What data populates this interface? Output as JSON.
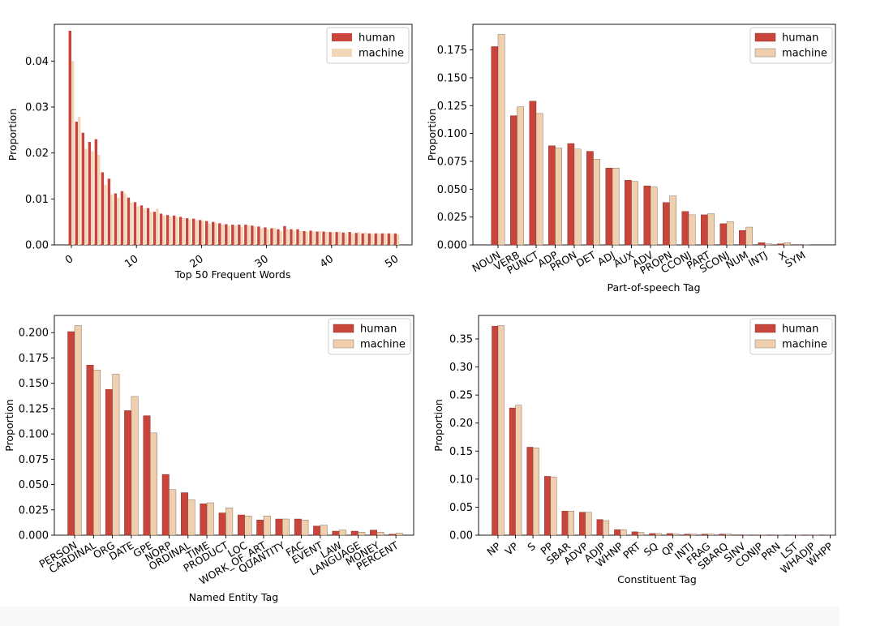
{
  "legend": {
    "human": "human",
    "machine": "machine"
  },
  "colors": {
    "human": "#c9443a",
    "machine": "#efcfae",
    "machine_light": "#f3d5b8"
  },
  "chart_data": [
    {
      "id": "words",
      "type": "bar",
      "title": "",
      "xlabel": "Top 50 Frequent Words",
      "ylabel": "Proportion",
      "xlim": [
        -2,
        51
      ],
      "ylim": [
        0,
        0.048
      ],
      "xticks": [
        0,
        10,
        20,
        30,
        40,
        50
      ],
      "xtick_labels": [
        "0",
        "10",
        "20",
        "30",
        "40",
        "50"
      ],
      "yticks": [
        0,
        0.01,
        0.02,
        0.03,
        0.04
      ],
      "ytick_labels": [
        "0.00",
        "0.01",
        "0.02",
        "0.03",
        "0.04"
      ],
      "legend_position": "top-right",
      "series": [
        {
          "name": "human",
          "x": [
            0,
            1,
            2,
            3,
            4,
            5,
            6,
            7,
            8,
            9,
            10,
            11,
            12,
            13,
            14,
            15,
            16,
            17,
            18,
            19,
            20,
            21,
            22,
            23,
            24,
            25,
            26,
            27,
            28,
            29,
            30,
            31,
            32,
            33,
            34,
            35,
            36,
            37,
            38,
            39,
            40,
            41,
            42,
            43,
            44,
            45,
            46,
            47,
            48,
            49,
            50
          ],
          "values": [
            0.0466,
            0.0268,
            0.0244,
            0.0224,
            0.023,
            0.0158,
            0.0144,
            0.0112,
            0.0117,
            0.0103,
            0.0093,
            0.0086,
            0.008,
            0.0072,
            0.0068,
            0.0065,
            0.0064,
            0.0061,
            0.0058,
            0.0057,
            0.0054,
            0.0052,
            0.005,
            0.0047,
            0.0045,
            0.0044,
            0.0044,
            0.0044,
            0.0042,
            0.004,
            0.0038,
            0.0036,
            0.0034,
            0.0041,
            0.0034,
            0.0034,
            0.003,
            0.0031,
            0.0029,
            0.0029,
            0.0028,
            0.0028,
            0.0027,
            0.0028,
            0.0026,
            0.0025,
            0.0025,
            0.0025,
            0.0025,
            0.0025,
            0.0025
          ]
        },
        {
          "name": "machine",
          "x": [
            0,
            1,
            2,
            3,
            4,
            5,
            6,
            7,
            8,
            9,
            10,
            11,
            12,
            13,
            14,
            15,
            16,
            17,
            18,
            19,
            20,
            21,
            22,
            23,
            24,
            25,
            26,
            27,
            28,
            29,
            30,
            31,
            32,
            33,
            34,
            35,
            36,
            37,
            38,
            39,
            40,
            41,
            42,
            43,
            44,
            45,
            46,
            47,
            48,
            49,
            50
          ],
          "values": [
            0.04,
            0.0279,
            0.0209,
            0.0204,
            0.0196,
            0.0131,
            0.0109,
            0.0103,
            0.0112,
            0.0092,
            0.0084,
            0.0079,
            0.0072,
            0.0079,
            0.0064,
            0.0062,
            0.0061,
            0.0058,
            0.0055,
            0.0054,
            0.0052,
            0.0046,
            0.0048,
            0.0044,
            0.0042,
            0.0042,
            0.0039,
            0.0042,
            0.004,
            0.0036,
            0.0034,
            0.0037,
            0.003,
            0.0034,
            0.0031,
            0.003,
            0.0029,
            0.0029,
            0.003,
            0.0028,
            0.0027,
            0.0029,
            0.0024,
            0.0025,
            0.0028,
            0.0027,
            0.0024,
            0.0025,
            0.0025,
            0.0024,
            0.0023
          ]
        }
      ]
    },
    {
      "id": "pos",
      "type": "bar",
      "title": "",
      "xlabel": "Part-of-speech Tag",
      "ylabel": "Proportion",
      "ylim": [
        0,
        0.198
      ],
      "yticks": [
        0,
        0.025,
        0.05,
        0.075,
        0.1,
        0.125,
        0.15,
        0.175
      ],
      "ytick_labels": [
        "0.000",
        "0.025",
        "0.050",
        "0.075",
        "0.100",
        "0.125",
        "0.150",
        "0.175"
      ],
      "legend_position": "top-right",
      "categories": [
        "NOUN",
        "VERB",
        "PUNCT",
        "ADP",
        "PRON",
        "DET",
        "ADJ",
        "AUX",
        "ADV",
        "PROPN",
        "CCONJ",
        "PART",
        "SCONJ",
        "NUM",
        "INTJ",
        "X",
        "SYM"
      ],
      "series": [
        {
          "name": "human",
          "values": [
            0.178,
            0.116,
            0.129,
            0.089,
            0.091,
            0.084,
            0.069,
            0.058,
            0.053,
            0.038,
            0.03,
            0.027,
            0.019,
            0.013,
            0.002,
            0.001,
            0.0003
          ]
        },
        {
          "name": "machine",
          "values": [
            0.189,
            0.124,
            0.118,
            0.087,
            0.086,
            0.077,
            0.069,
            0.057,
            0.052,
            0.044,
            0.027,
            0.028,
            0.021,
            0.016,
            0.001,
            0.002,
            0.0002
          ]
        }
      ]
    },
    {
      "id": "ner",
      "type": "bar",
      "title": "",
      "xlabel": "Named Entity Tag",
      "ylabel": "Proportion",
      "ylim": [
        0,
        0.217
      ],
      "yticks": [
        0,
        0.025,
        0.05,
        0.075,
        0.1,
        0.125,
        0.15,
        0.175,
        0.2
      ],
      "ytick_labels": [
        "0.000",
        "0.025",
        "0.050",
        "0.075",
        "0.100",
        "0.125",
        "0.150",
        "0.175",
        "0.200"
      ],
      "legend_position": "top-right",
      "categories": [
        "PERSON",
        "CARDINAL",
        "ORG",
        "DATE",
        "GPE",
        "NORP",
        "ORDINAL",
        "TIME",
        "PRODUCT",
        "LOC",
        "WORK_OF_ART",
        "QUANTITY",
        "FAC",
        "EVENT",
        "LAW",
        "LANGUAGE",
        "MONEY",
        "PERCENT"
      ],
      "series": [
        {
          "name": "human",
          "values": [
            0.201,
            0.168,
            0.144,
            0.123,
            0.118,
            0.06,
            0.042,
            0.031,
            0.022,
            0.02,
            0.015,
            0.016,
            0.016,
            0.009,
            0.004,
            0.004,
            0.005,
            0.001
          ]
        },
        {
          "name": "machine",
          "values": [
            0.207,
            0.163,
            0.159,
            0.137,
            0.101,
            0.045,
            0.035,
            0.032,
            0.027,
            0.019,
            0.019,
            0.016,
            0.015,
            0.01,
            0.005,
            0.003,
            0.003,
            0.002
          ]
        }
      ]
    },
    {
      "id": "const",
      "type": "bar",
      "title": "",
      "xlabel": "Constituent Tag",
      "ylabel": "Proportion",
      "ylim": [
        0,
        0.392
      ],
      "yticks": [
        0,
        0.05,
        0.1,
        0.15,
        0.2,
        0.25,
        0.3,
        0.35
      ],
      "ytick_labels": [
        "0.00",
        "0.05",
        "0.10",
        "0.15",
        "0.20",
        "0.25",
        "0.30",
        "0.35"
      ],
      "legend_position": "top-right",
      "categories": [
        "NP",
        "VP",
        "S",
        "PP",
        "SBAR",
        "ADVP",
        "ADJP",
        "WHNP",
        "PRT",
        "SQ",
        "QP",
        "INTJ",
        "FRAG",
        "SBARQ",
        "SINV",
        "CONJP",
        "PRN",
        "LST",
        "WHADJP",
        "WHPP"
      ],
      "series": [
        {
          "name": "human",
          "values": [
            0.373,
            0.227,
            0.157,
            0.105,
            0.043,
            0.041,
            0.028,
            0.01,
            0.006,
            0.003,
            0.003,
            0.002,
            0.002,
            0.002,
            0.0007,
            0.0005,
            0.0005,
            0.0003,
            0.0002,
            0.0001
          ]
        },
        {
          "name": "machine",
          "values": [
            0.374,
            0.232,
            0.156,
            0.104,
            0.043,
            0.041,
            0.026,
            0.01,
            0.005,
            0.003,
            0.002,
            0.002,
            0.002,
            0.002,
            0.0006,
            0.0005,
            0.0004,
            0.0003,
            0.0002,
            0.0001
          ]
        }
      ]
    }
  ]
}
